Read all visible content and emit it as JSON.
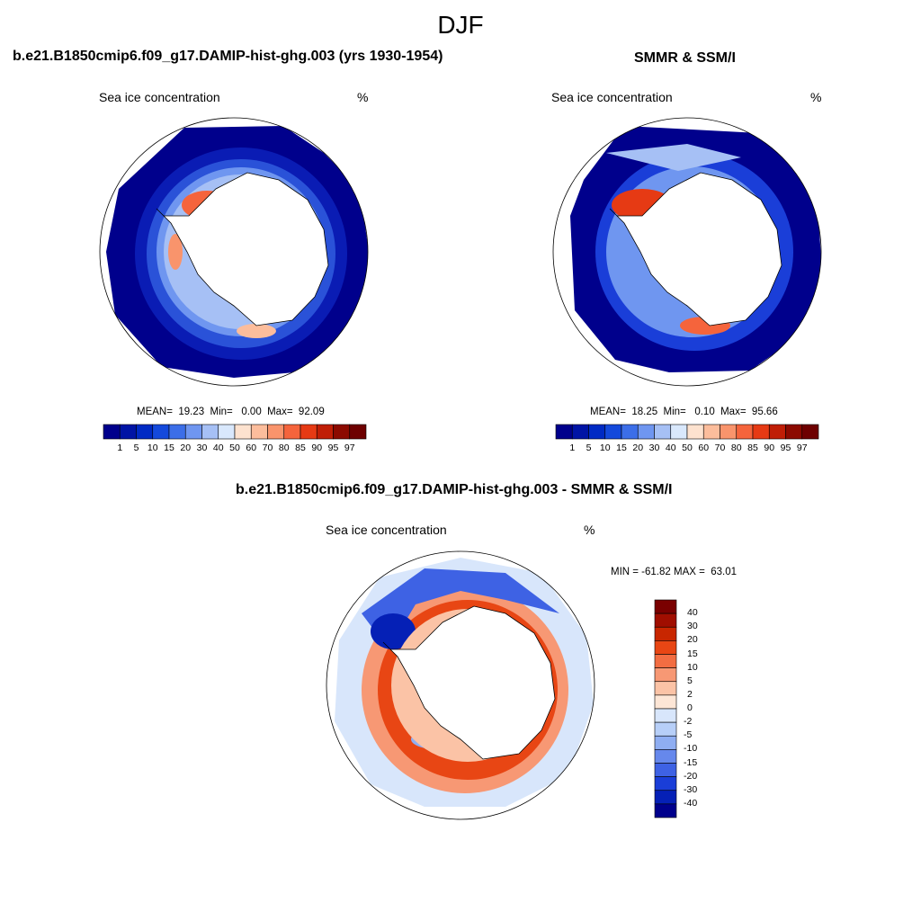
{
  "season": "DJF",
  "panels": [
    {
      "title": "b.e21.B1850cmip6.f09_g17.DAMIP-hist-ghg.003 (yrs 1930-1954)",
      "variable": "Sea ice concentration",
      "units": "%",
      "stats": "MEAN=  19.23  Min=   0.00  Max=  92.09"
    },
    {
      "title": "SMMR & SSM/I",
      "variable": "Sea ice concentration",
      "units": "%",
      "stats": "MEAN=  18.25  Min=   0.10  Max=  95.66"
    },
    {
      "title": "b.e21.B1850cmip6.f09_g17.DAMIP-hist-ghg.003 - SMMR & SSM/I",
      "variable": "Sea ice concentration",
      "units": "%",
      "stats": "MIN = -61.82 MAX =  63.01"
    }
  ],
  "conc_colorbar": {
    "ticks": [
      "1",
      "5",
      "10",
      "15",
      "20",
      "30",
      "40",
      "50",
      "60",
      "70",
      "80",
      "85",
      "90",
      "95",
      "97"
    ],
    "colors": [
      "#00008c",
      "#0014a5",
      "#002ac4",
      "#1449dc",
      "#3c6ee8",
      "#6f96f0",
      "#a6c0f5",
      "#d9e8fc",
      "#fde2cf",
      "#fcbd9c",
      "#f9946c",
      "#f5643c",
      "#e63a14",
      "#c01e06",
      "#8c0a00",
      "#6e0000"
    ]
  },
  "diff_colorbar": {
    "ticks": [
      "40",
      "30",
      "20",
      "15",
      "10",
      "5",
      "2",
      "0",
      "-2",
      "-5",
      "-10",
      "-15",
      "-20",
      "-30",
      "-40"
    ],
    "colors": [
      "#7a0000",
      "#a00e00",
      "#c82600",
      "#e84614",
      "#f26d42",
      "#f79874",
      "#fbc3a6",
      "#fde6d6",
      "#d8e6fb",
      "#b7cff8",
      "#8faef2",
      "#6688ec",
      "#3e62e4",
      "#1a3ed8",
      "#0520b6",
      "#00008c"
    ]
  }
}
